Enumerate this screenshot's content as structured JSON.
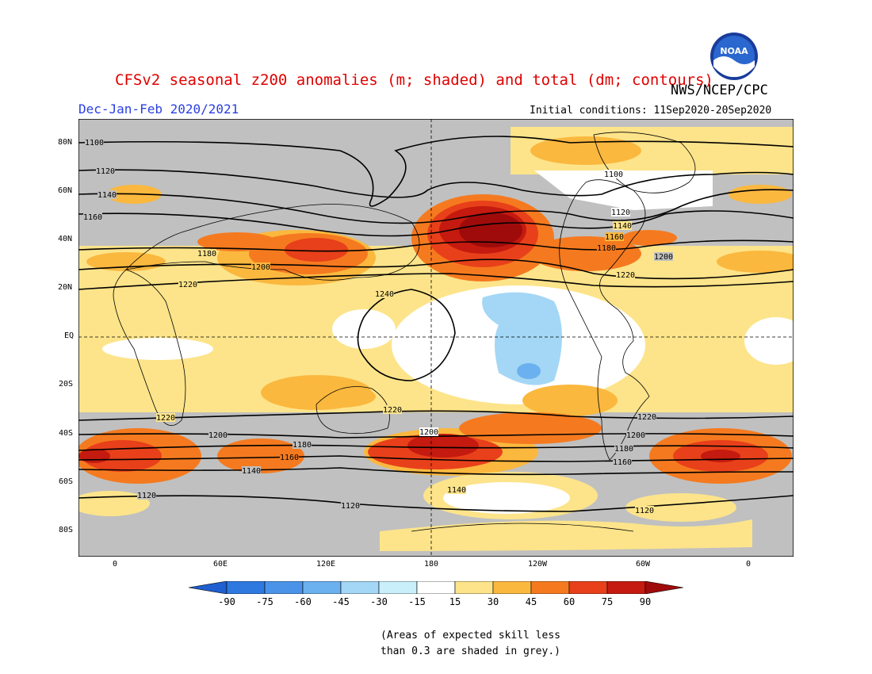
{
  "title": "CFSv2 seasonal z200 anomalies (m; shaded) and total (dm; contours)",
  "agency": "NWS/NCEP/CPC",
  "season": "Dec-Jan-Feb 2020/2021",
  "initial_conditions": "Initial conditions: 11Sep2020-20Sep2020",
  "logo_text": "NOAA",
  "lat_labels": [
    "80N",
    "60N",
    "40N",
    "20N",
    "EQ",
    "20S",
    "40S",
    "60S",
    "80S"
  ],
  "lon_labels": [
    "0",
    "60E",
    "120E",
    "180",
    "120W",
    "60W",
    "0"
  ],
  "colorbar": {
    "labels": [
      "-90",
      "-75",
      "-60",
      "-45",
      "-30",
      "-15",
      "15",
      "30",
      "45",
      "60",
      "75",
      "90"
    ],
    "colors": [
      "#1f5fcf",
      "#2d79e0",
      "#4a93e8",
      "#6bb1ef",
      "#a4d7f5",
      "#c9effa",
      "#ffffff",
      "#fde48a",
      "#fbb83e",
      "#f57a1f",
      "#e8401a",
      "#c51a0f",
      "#9f0b0b"
    ]
  },
  "note_line1": "(Areas of expected skill less",
  "note_line2": "than 0.3 are shaded in grey.)",
  "contour_labels": [
    "1100",
    "1120",
    "1140",
    "1160",
    "1180",
    "1200",
    "1220",
    "1240"
  ]
}
